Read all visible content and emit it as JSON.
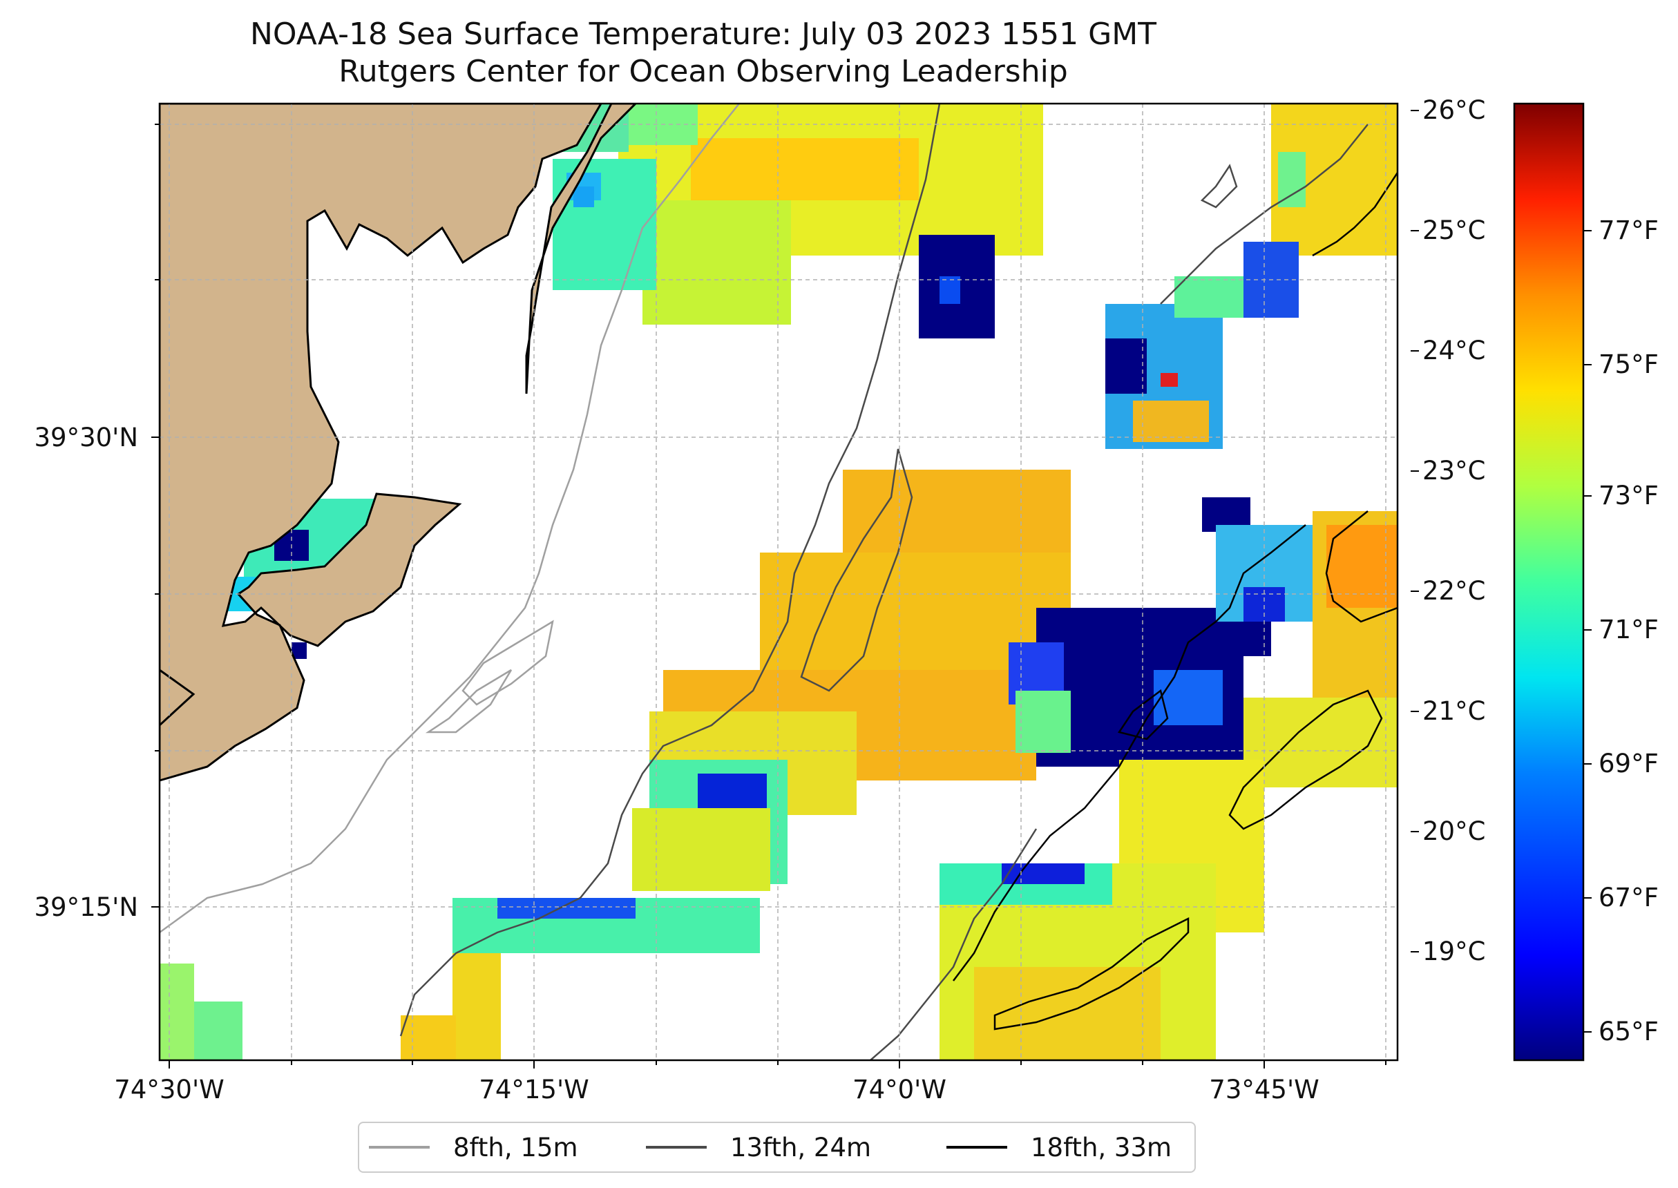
{
  "title": {
    "line1": "NOAA-18 Sea Surface Temperature: July 03 2023 1551 GMT",
    "line2": "Rutgers Center for Ocean Observing Leadership"
  },
  "map": {
    "lat_labels": [
      "39°30'N",
      "39°15'N"
    ],
    "lon_labels": [
      "74°30'W",
      "74°15'W",
      "74°0'W",
      "73°45'W"
    ]
  },
  "colorbar": {
    "celsius_labels": [
      "26°C",
      "25°C",
      "24°C",
      "23°C",
      "22°C",
      "21°C",
      "20°C",
      "19°C"
    ],
    "fahrenheit_labels": [
      "77°F",
      "75°F",
      "73°F",
      "71°F",
      "69°F",
      "67°F",
      "65°F"
    ],
    "colors": [
      "#00007f",
      "#0000ff",
      "#007fff",
      "#00e5f0",
      "#40ff9f",
      "#b0ff40",
      "#ffe000",
      "#ff9000",
      "#ff2000",
      "#7f0000"
    ]
  },
  "legend": [
    {
      "label": "8fth, 15m",
      "color": "#a0a0a0"
    },
    {
      "label": "13fth, 24m",
      "color": "#4a4a4a"
    },
    {
      "label": "18fth, 33m",
      "color": "#000000"
    }
  ],
  "land_color": "#d2b48c"
}
